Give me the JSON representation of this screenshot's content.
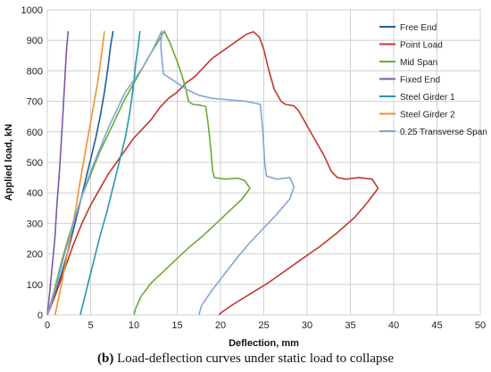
{
  "caption": {
    "prefix": "(b)",
    "text": " Load-deflection curves under static load to collapse"
  },
  "chart_data": {
    "type": "line",
    "title": "",
    "xlabel": "Deflection, mm",
    "ylabel": "Applied load, kN",
    "xlim": [
      0,
      50
    ],
    "ylim": [
      0,
      1000
    ],
    "xticks": [
      0,
      5,
      10,
      15,
      20,
      25,
      30,
      35,
      40,
      45,
      50
    ],
    "yticks": [
      0,
      100,
      200,
      300,
      400,
      500,
      600,
      700,
      800,
      900,
      1000
    ],
    "grid": true,
    "legend_position": "top-right",
    "series": [
      {
        "name": "Free End",
        "color": "#1F5C99",
        "points": [
          [
            0,
            0
          ],
          [
            0.8,
            60
          ],
          [
            1.6,
            130
          ],
          [
            2.4,
            210
          ],
          [
            3.1,
            290
          ],
          [
            3.8,
            370
          ],
          [
            4.4,
            440
          ],
          [
            5.0,
            510
          ],
          [
            5.6,
            580
          ],
          [
            6.1,
            650
          ],
          [
            6.6,
            730
          ],
          [
            7.0,
            810
          ],
          [
            7.3,
            880
          ],
          [
            7.6,
            930
          ]
        ]
      },
      {
        "name": "Point Load",
        "color": "#C0392B",
        "points": [
          [
            0,
            0
          ],
          [
            1,
            70
          ],
          [
            2,
            150
          ],
          [
            3,
            230
          ],
          [
            4,
            300
          ],
          [
            5,
            360
          ],
          [
            6,
            410
          ],
          [
            7,
            460
          ],
          [
            8,
            500
          ],
          [
            9,
            540
          ],
          [
            10,
            580
          ],
          [
            11,
            610
          ],
          [
            12,
            640
          ],
          [
            13,
            680
          ],
          [
            14,
            710
          ],
          [
            15,
            730
          ],
          [
            16,
            760
          ],
          [
            17,
            780
          ],
          [
            18,
            810
          ],
          [
            19,
            840
          ],
          [
            20,
            860
          ],
          [
            21,
            880
          ],
          [
            22,
            900
          ],
          [
            23,
            920
          ],
          [
            23.8,
            928
          ],
          [
            24.5,
            910
          ],
          [
            25,
            870
          ],
          [
            25.5,
            810
          ],
          [
            26.2,
            740
          ],
          [
            27,
            700
          ],
          [
            27.5,
            690
          ],
          [
            28.5,
            685
          ],
          [
            29,
            670
          ],
          [
            30,
            620
          ],
          [
            31,
            570
          ],
          [
            32,
            520
          ],
          [
            32.8,
            470
          ],
          [
            33.5,
            450
          ],
          [
            34.5,
            445
          ],
          [
            36,
            450
          ],
          [
            37.5,
            445
          ],
          [
            38.2,
            415
          ],
          [
            37,
            370
          ],
          [
            35.5,
            320
          ],
          [
            33.5,
            270
          ],
          [
            31.5,
            225
          ],
          [
            29.5,
            185
          ],
          [
            27.5,
            145
          ],
          [
            25.5,
            105
          ],
          [
            23.5,
            70
          ],
          [
            21.5,
            35
          ],
          [
            20.2,
            10
          ],
          [
            19.8,
            0
          ]
        ]
      },
      {
        "name": "Mid Span",
        "color": "#6AAA3A",
        "points": [
          [
            0,
            0
          ],
          [
            0.8,
            80
          ],
          [
            1.6,
            170
          ],
          [
            2.4,
            250
          ],
          [
            3.2,
            320
          ],
          [
            4,
            390
          ],
          [
            5,
            460
          ],
          [
            6,
            530
          ],
          [
            7,
            590
          ],
          [
            8,
            650
          ],
          [
            9,
            710
          ],
          [
            10,
            760
          ],
          [
            11,
            810
          ],
          [
            12,
            860
          ],
          [
            13,
            905
          ],
          [
            13.5,
            930
          ],
          [
            14.2,
            890
          ],
          [
            15,
            830
          ],
          [
            15.5,
            790
          ],
          [
            16,
            740
          ],
          [
            16.3,
            700
          ],
          [
            16.8,
            690
          ],
          [
            17.5,
            688
          ],
          [
            18.3,
            683
          ],
          [
            18.6,
            620
          ],
          [
            18.9,
            540
          ],
          [
            19.1,
            470
          ],
          [
            19.3,
            450
          ],
          [
            20.5,
            445
          ],
          [
            22,
            448
          ],
          [
            22.8,
            440
          ],
          [
            23.4,
            415
          ],
          [
            22.5,
            380
          ],
          [
            21,
            340
          ],
          [
            19.5,
            300
          ],
          [
            18,
            260
          ],
          [
            16.5,
            225
          ],
          [
            15,
            185
          ],
          [
            13.5,
            145
          ],
          [
            12,
            105
          ],
          [
            10.8,
            60
          ],
          [
            10.2,
            20
          ],
          [
            10,
            0
          ]
        ]
      },
      {
        "name": "Fixed End",
        "color": "#7E57A8",
        "points": [
          [
            0,
            0
          ],
          [
            0.3,
            80
          ],
          [
            0.6,
            170
          ],
          [
            0.9,
            260
          ],
          [
            1.1,
            360
          ],
          [
            1.4,
            470
          ],
          [
            1.6,
            560
          ],
          [
            1.8,
            660
          ],
          [
            2.0,
            760
          ],
          [
            2.2,
            860
          ],
          [
            2.4,
            930
          ]
        ]
      },
      {
        "name": "Steel Girder 1",
        "color": "#2696B0",
        "points": [
          [
            3.8,
            0
          ],
          [
            4.5,
            80
          ],
          [
            5.3,
            170
          ],
          [
            6.1,
            260
          ],
          [
            6.9,
            340
          ],
          [
            7.6,
            420
          ],
          [
            8.3,
            500
          ],
          [
            9.0,
            580
          ],
          [
            9.5,
            660
          ],
          [
            9.9,
            740
          ],
          [
            10.2,
            820
          ],
          [
            10.5,
            880
          ],
          [
            10.7,
            930
          ]
        ]
      },
      {
        "name": "Steel Girder 2",
        "color": "#F0922F",
        "points": [
          [
            0.9,
            0
          ],
          [
            1.5,
            80
          ],
          [
            2.1,
            170
          ],
          [
            2.7,
            260
          ],
          [
            3.3,
            350
          ],
          [
            3.8,
            440
          ],
          [
            4.3,
            520
          ],
          [
            4.8,
            600
          ],
          [
            5.3,
            680
          ],
          [
            5.8,
            760
          ],
          [
            6.2,
            840
          ],
          [
            6.6,
            930
          ]
        ]
      },
      {
        "name": "0.25 Transverse Span",
        "color": "#7FA6D6",
        "points": [
          [
            0,
            0
          ],
          [
            1,
            90
          ],
          [
            2,
            200
          ],
          [
            3,
            300
          ],
          [
            4,
            390
          ],
          [
            5,
            470
          ],
          [
            6,
            540
          ],
          [
            7,
            610
          ],
          [
            8,
            670
          ],
          [
            9,
            730
          ],
          [
            10,
            770
          ],
          [
            11,
            810
          ],
          [
            12,
            860
          ],
          [
            12.7,
            900
          ],
          [
            13.2,
            930
          ],
          [
            13.1,
            880
          ],
          [
            13.4,
            790
          ],
          [
            14.5,
            770
          ],
          [
            16,
            740
          ],
          [
            17.5,
            720
          ],
          [
            19,
            710
          ],
          [
            21,
            705
          ],
          [
            23,
            700
          ],
          [
            24.6,
            690
          ],
          [
            24.9,
            600
          ],
          [
            25.1,
            500
          ],
          [
            25.3,
            455
          ],
          [
            26.5,
            445
          ],
          [
            28,
            450
          ],
          [
            28.5,
            420
          ],
          [
            28,
            380
          ],
          [
            26.5,
            330
          ],
          [
            25,
            285
          ],
          [
            23.5,
            240
          ],
          [
            22,
            190
          ],
          [
            20.5,
            135
          ],
          [
            19,
            80
          ],
          [
            17.8,
            30
          ],
          [
            17.5,
            0
          ]
        ]
      }
    ]
  }
}
